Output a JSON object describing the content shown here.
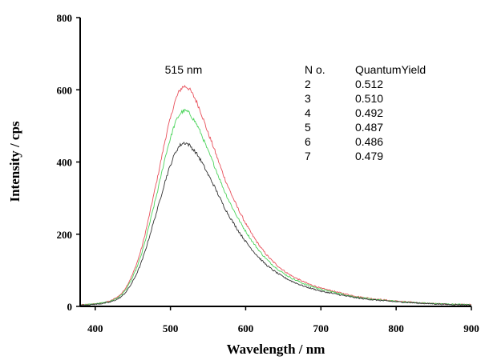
{
  "chart_data": {
    "type": "line",
    "title": "",
    "xlabel": "Wavelength / nm",
    "ylabel": "Intensity / cps",
    "xlim": [
      380,
      900
    ],
    "ylim": [
      0,
      800
    ],
    "x_ticks": [
      400,
      500,
      600,
      700,
      800,
      900
    ],
    "y_ticks": [
      0,
      200,
      400,
      600,
      800
    ],
    "grid": false,
    "annotation": "515 nm",
    "series": [
      {
        "color": "#e8505b",
        "points": [
          [
            380,
            4
          ],
          [
            420,
            15
          ],
          [
            440,
            50
          ],
          [
            460,
            150
          ],
          [
            480,
            330
          ],
          [
            500,
            520
          ],
          [
            515,
            605
          ],
          [
            530,
            585
          ],
          [
            550,
            480
          ],
          [
            575,
            340
          ],
          [
            600,
            230
          ],
          [
            625,
            150
          ],
          [
            650,
            100
          ],
          [
            675,
            70
          ],
          [
            700,
            50
          ],
          [
            750,
            27
          ],
          [
            800,
            15
          ],
          [
            850,
            8
          ],
          [
            900,
            5
          ]
        ]
      },
      {
        "color": "#4cd45c",
        "points": [
          [
            380,
            4
          ],
          [
            420,
            14
          ],
          [
            440,
            45
          ],
          [
            460,
            135
          ],
          [
            480,
            295
          ],
          [
            500,
            465
          ],
          [
            515,
            538
          ],
          [
            530,
            520
          ],
          [
            550,
            430
          ],
          [
            575,
            305
          ],
          [
            600,
            208
          ],
          [
            625,
            137
          ],
          [
            650,
            92
          ],
          [
            675,
            65
          ],
          [
            700,
            47
          ],
          [
            750,
            25
          ],
          [
            800,
            14
          ],
          [
            850,
            8
          ],
          [
            900,
            5
          ]
        ]
      },
      {
        "color": "#333333",
        "points": [
          [
            380,
            3
          ],
          [
            420,
            12
          ],
          [
            440,
            38
          ],
          [
            460,
            115
          ],
          [
            480,
            250
          ],
          [
            500,
            390
          ],
          [
            515,
            450
          ],
          [
            530,
            435
          ],
          [
            550,
            365
          ],
          [
            575,
            262
          ],
          [
            600,
            180
          ],
          [
            625,
            120
          ],
          [
            650,
            82
          ],
          [
            675,
            58
          ],
          [
            700,
            42
          ],
          [
            750,
            23
          ],
          [
            800,
            13
          ],
          [
            850,
            7
          ],
          [
            900,
            4
          ]
        ]
      }
    ],
    "table": {
      "headers": [
        "N o.",
        "QuantumYield"
      ],
      "rows": [
        [
          "2",
          "0.512"
        ],
        [
          "3",
          "0.510"
        ],
        [
          "4",
          "0.492"
        ],
        [
          "5",
          "0.487"
        ],
        [
          "6",
          "0.486"
        ],
        [
          "7",
          "0.479"
        ]
      ]
    }
  }
}
